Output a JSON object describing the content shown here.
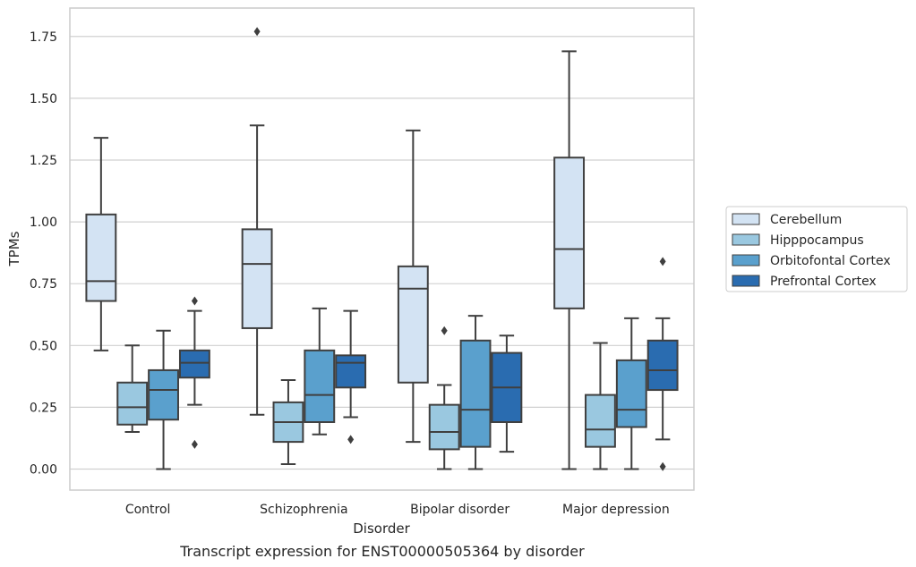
{
  "chart_data": {
    "type": "box",
    "caption": "Transcript expression for ENST00000505364 by disorder",
    "xlabel": "Disorder",
    "ylabel": "TPMs",
    "ylim": [
      -0.085,
      1.865
    ],
    "yticks": [
      "0.00",
      "0.25",
      "0.50",
      "0.75",
      "1.00",
      "1.25",
      "1.50",
      "1.75"
    ],
    "grid": "horizontal",
    "legend_position": "right",
    "categories": [
      "Control",
      "Schizophrenia",
      "Bipolar disorder",
      "Major depression"
    ],
    "series": [
      {
        "name": "Cerebellum",
        "color": "#d3e3f3",
        "boxes": [
          {
            "min": 0.48,
            "q1": 0.68,
            "median": 0.76,
            "q3": 1.03,
            "max": 1.34,
            "outliers": []
          },
          {
            "min": 0.22,
            "q1": 0.57,
            "median": 0.83,
            "q3": 0.97,
            "max": 1.39,
            "outliers": [
              1.77
            ]
          },
          {
            "min": 0.11,
            "q1": 0.35,
            "median": 0.73,
            "q3": 0.82,
            "max": 1.37,
            "outliers": []
          },
          {
            "min": 0.0,
            "q1": 0.65,
            "median": 0.89,
            "q3": 1.26,
            "max": 1.69,
            "outliers": []
          }
        ]
      },
      {
        "name": "Hipppocampus",
        "color": "#9ac8e0",
        "boxes": [
          {
            "min": 0.15,
            "q1": 0.18,
            "median": 0.25,
            "q3": 0.35,
            "max": 0.5,
            "outliers": []
          },
          {
            "min": 0.02,
            "q1": 0.11,
            "median": 0.19,
            "q3": 0.27,
            "max": 0.36,
            "outliers": []
          },
          {
            "min": 0.0,
            "q1": 0.08,
            "median": 0.15,
            "q3": 0.26,
            "max": 0.34,
            "outliers": [
              0.56
            ]
          },
          {
            "min": 0.0,
            "q1": 0.09,
            "median": 0.16,
            "q3": 0.3,
            "max": 0.51,
            "outliers": []
          }
        ]
      },
      {
        "name": "Orbitofontal Cortex",
        "color": "#5aa0cd",
        "boxes": [
          {
            "min": 0.0,
            "q1": 0.2,
            "median": 0.32,
            "q3": 0.4,
            "max": 0.56,
            "outliers": []
          },
          {
            "min": 0.14,
            "q1": 0.19,
            "median": 0.3,
            "q3": 0.48,
            "max": 0.65,
            "outliers": []
          },
          {
            "min": 0.0,
            "q1": 0.09,
            "median": 0.24,
            "q3": 0.52,
            "max": 0.62,
            "outliers": []
          },
          {
            "min": 0.0,
            "q1": 0.17,
            "median": 0.24,
            "q3": 0.44,
            "max": 0.61,
            "outliers": []
          }
        ]
      },
      {
        "name": "Prefrontal Cortex",
        "color": "#2a6cb0",
        "boxes": [
          {
            "min": 0.26,
            "q1": 0.37,
            "median": 0.43,
            "q3": 0.48,
            "max": 0.64,
            "outliers": [
              0.68,
              0.1
            ]
          },
          {
            "min": 0.21,
            "q1": 0.33,
            "median": 0.43,
            "q3": 0.46,
            "max": 0.64,
            "outliers": [
              0.12
            ]
          },
          {
            "min": 0.07,
            "q1": 0.19,
            "median": 0.33,
            "q3": 0.47,
            "max": 0.54,
            "outliers": []
          },
          {
            "min": 0.12,
            "q1": 0.32,
            "median": 0.4,
            "q3": 0.52,
            "max": 0.61,
            "outliers": [
              0.84,
              0.01
            ]
          }
        ]
      }
    ]
  }
}
